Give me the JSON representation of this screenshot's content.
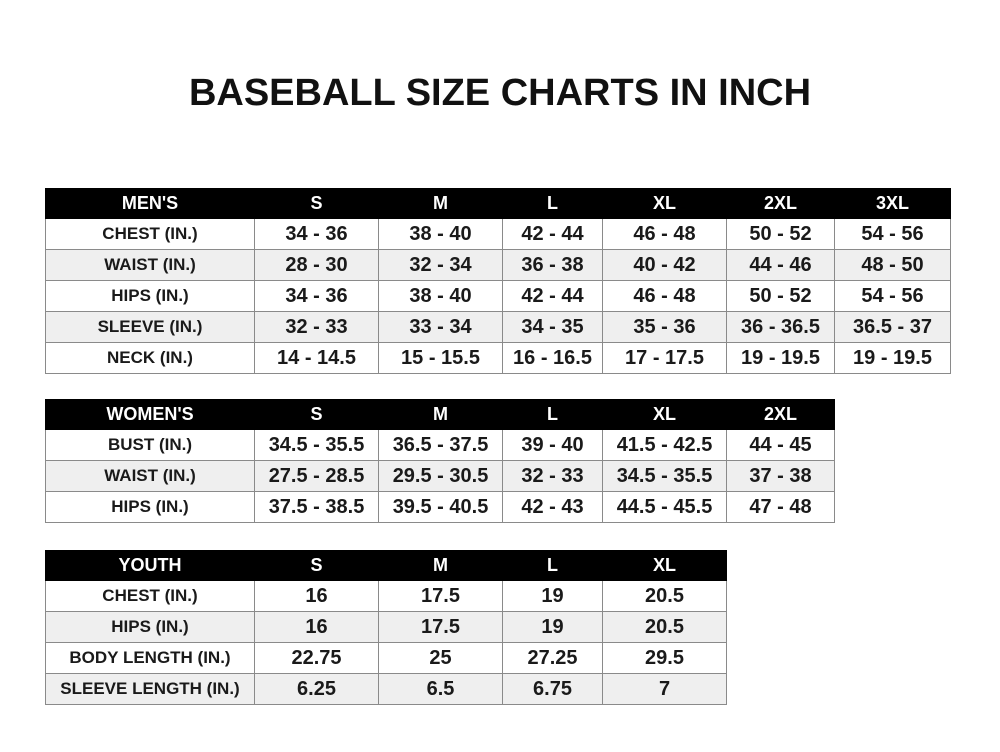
{
  "title": "BASEBALL SIZE CHARTS IN INCH",
  "tables": [
    {
      "name": "mens",
      "headers": [
        "MEN'S",
        "S",
        "M",
        "L",
        "XL",
        "2XL",
        "3XL"
      ],
      "rows": [
        [
          "CHEST (IN.)",
          "34 - 36",
          "38 - 40",
          "42 - 44",
          "46 - 48",
          "50 - 52",
          "54 - 56"
        ],
        [
          "WAIST (IN.)",
          "28 - 30",
          "32 - 34",
          "36 - 38",
          "40 - 42",
          "44 - 46",
          "48 - 50"
        ],
        [
          "HIPS (IN.)",
          "34 - 36",
          "38 - 40",
          "42 - 44",
          "46 - 48",
          "50 - 52",
          "54 - 56"
        ],
        [
          "SLEEVE (IN.)",
          "32 - 33",
          "33 - 34",
          "34 - 35",
          "35 - 36",
          "36 - 36.5",
          "36.5 - 37"
        ],
        [
          "NECK (IN.)",
          "14 - 14.5",
          "15 - 15.5",
          "16 - 16.5",
          "17 - 17.5",
          "19 - 19.5",
          "19 - 19.5"
        ]
      ]
    },
    {
      "name": "womens",
      "headers": [
        "WOMEN'S",
        "S",
        "M",
        "L",
        "XL",
        "2XL"
      ],
      "rows": [
        [
          "BUST (IN.)",
          "34.5 - 35.5",
          "36.5 - 37.5",
          "39 - 40",
          "41.5 - 42.5",
          "44 - 45"
        ],
        [
          "WAIST (IN.)",
          "27.5 - 28.5",
          "29.5 - 30.5",
          "32 - 33",
          "34.5 - 35.5",
          "37 - 38"
        ],
        [
          "HIPS (IN.)",
          "37.5 - 38.5",
          "39.5 - 40.5",
          "42 - 43",
          "44.5 - 45.5",
          "47 - 48"
        ]
      ]
    },
    {
      "name": "youth",
      "headers": [
        "YOUTH",
        "S",
        "M",
        "L",
        "XL"
      ],
      "rows": [
        [
          "CHEST (IN.)",
          "16",
          "17.5",
          "19",
          "20.5"
        ],
        [
          "HIPS (IN.)",
          "16",
          "17.5",
          "19",
          "20.5"
        ],
        [
          "BODY LENGTH (IN.)",
          "22.75",
          "25",
          "27.25",
          "29.5"
        ],
        [
          "SLEEVE LENGTH (IN.)",
          "6.25",
          "6.5",
          "6.75",
          "7"
        ]
      ]
    }
  ]
}
